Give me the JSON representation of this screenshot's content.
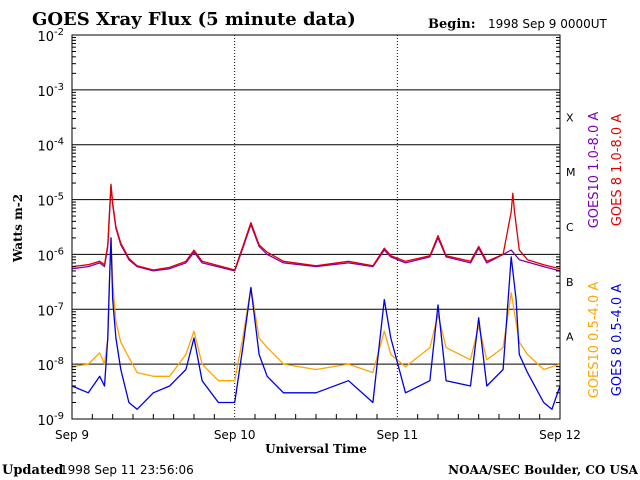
{
  "title": "GOES Xray Flux (5 minute data)",
  "begin_label": "Begin:",
  "begin_value": "1998 Sep 9 0000UT",
  "updated_label": "Updated",
  "updated_value": "1998 Sep 11 23:56:06",
  "credit": "NOAA/SEC Boulder, CO USA",
  "ylabel": "Watts m-2",
  "xlabel": "Universal Time",
  "colors": {
    "goes10_long": "#7f00b2",
    "goes8_long": "#e00000",
    "goes10_short": "#ffa500",
    "goes8_short": "#0000e6"
  },
  "chart_data": {
    "type": "line",
    "y_scale": "log",
    "ylim": [
      1e-09,
      0.01
    ],
    "y_ticks": [
      {
        "value": 0.01,
        "base": "10",
        "exp": "-2"
      },
      {
        "value": 0.001,
        "base": "10",
        "exp": "-3"
      },
      {
        "value": 0.0001,
        "base": "10",
        "exp": "-4"
      },
      {
        "value": 1e-05,
        "base": "10",
        "exp": "-5"
      },
      {
        "value": 1e-06,
        "base": "10",
        "exp": "-6"
      },
      {
        "value": 1e-07,
        "base": "10",
        "exp": "-7"
      },
      {
        "value": 1e-08,
        "base": "10",
        "exp": "-8"
      },
      {
        "value": 1e-09,
        "base": "10",
        "exp": "-9"
      }
    ],
    "xlim_days": [
      0,
      3
    ],
    "x_ticks": [
      {
        "day": 0,
        "label": "Sep 9"
      },
      {
        "day": 1,
        "label": "Sep 10"
      },
      {
        "day": 2,
        "label": "Sep 11"
      },
      {
        "day": 3,
        "label": "Sep 12"
      }
    ],
    "flare_classes": [
      {
        "label": "X",
        "value": 0.0001
      },
      {
        "label": "M",
        "value": 1e-05
      },
      {
        "label": "C",
        "value": 1e-06
      },
      {
        "label": "B",
        "value": 1e-07
      },
      {
        "label": "A",
        "value": 1e-08
      }
    ],
    "grid": true,
    "legend_position": "right",
    "series": [
      {
        "name": "GOES10 1.0-8.0 A",
        "color": "#7f00b2",
        "points": [
          [
            0,
            5.5e-07
          ],
          [
            0.1,
            6e-07
          ],
          [
            0.17,
            7e-07
          ],
          [
            0.2,
            6e-07
          ],
          [
            0.22,
            1.4e-06
          ],
          [
            0.23,
            5e-06
          ],
          [
            0.24,
            1.8e-05
          ],
          [
            0.25,
            8e-06
          ],
          [
            0.27,
            3e-06
          ],
          [
            0.3,
            1.5e-06
          ],
          [
            0.35,
            8e-07
          ],
          [
            0.4,
            6e-07
          ],
          [
            0.5,
            5e-07
          ],
          [
            0.6,
            5.5e-07
          ],
          [
            0.7,
            7e-07
          ],
          [
            0.75,
            1.1e-06
          ],
          [
            0.8,
            7e-07
          ],
          [
            1.0,
            5e-07
          ],
          [
            1.05,
            1.3e-06
          ],
          [
            1.1,
            3.5e-06
          ],
          [
            1.15,
            1.4e-06
          ],
          [
            1.2,
            1e-06
          ],
          [
            1.3,
            7e-07
          ],
          [
            1.5,
            6e-07
          ],
          [
            1.7,
            7e-07
          ],
          [
            1.85,
            6e-07
          ],
          [
            1.92,
            1.2e-06
          ],
          [
            1.96,
            9e-07
          ],
          [
            2.05,
            7e-07
          ],
          [
            2.2,
            9e-07
          ],
          [
            2.25,
            2e-06
          ],
          [
            2.3,
            9e-07
          ],
          [
            2.45,
            7e-07
          ],
          [
            2.5,
            1.3e-06
          ],
          [
            2.55,
            7e-07
          ],
          [
            2.65,
            1e-06
          ],
          [
            2.7,
            1.2e-06
          ],
          [
            2.75,
            8e-07
          ],
          [
            2.9,
            6e-07
          ],
          [
            3.0,
            5e-07
          ]
        ]
      },
      {
        "name": "GOES 8 1.0-8.0 A",
        "color": "#e00000",
        "points": [
          [
            0,
            6e-07
          ],
          [
            0.1,
            6.5e-07
          ],
          [
            0.17,
            7.5e-07
          ],
          [
            0.2,
            6.5e-07
          ],
          [
            0.22,
            1.5e-06
          ],
          [
            0.23,
            5.5e-06
          ],
          [
            0.24,
            1.9e-05
          ],
          [
            0.25,
            8.5e-06
          ],
          [
            0.27,
            3.2e-06
          ],
          [
            0.3,
            1.6e-06
          ],
          [
            0.35,
            8.5e-07
          ],
          [
            0.4,
            6.2e-07
          ],
          [
            0.5,
            5.2e-07
          ],
          [
            0.6,
            5.8e-07
          ],
          [
            0.7,
            7.5e-07
          ],
          [
            0.75,
            1.2e-06
          ],
          [
            0.8,
            7.5e-07
          ],
          [
            1.0,
            5.2e-07
          ],
          [
            1.05,
            1.4e-06
          ],
          [
            1.1,
            3.8e-06
          ],
          [
            1.15,
            1.5e-06
          ],
          [
            1.2,
            1.1e-06
          ],
          [
            1.3,
            7.5e-07
          ],
          [
            1.5,
            6.2e-07
          ],
          [
            1.7,
            7.5e-07
          ],
          [
            1.85,
            6.2e-07
          ],
          [
            1.92,
            1.3e-06
          ],
          [
            1.96,
            9.5e-07
          ],
          [
            2.05,
            7.5e-07
          ],
          [
            2.2,
            9.5e-07
          ],
          [
            2.25,
            2.2e-06
          ],
          [
            2.3,
            9.5e-07
          ],
          [
            2.45,
            7.5e-07
          ],
          [
            2.5,
            1.4e-06
          ],
          [
            2.55,
            7.5e-07
          ],
          [
            2.65,
            1e-06
          ],
          [
            2.7,
            6e-06
          ],
          [
            2.71,
            1.3e-05
          ],
          [
            2.72,
            6e-06
          ],
          [
            2.75,
            1.2e-06
          ],
          [
            2.8,
            8e-07
          ],
          [
            2.9,
            6.5e-07
          ],
          [
            3.0,
            5.5e-07
          ]
        ]
      },
      {
        "name": "GOES10 0.5-4.0 A",
        "color": "#ffa500",
        "points": [
          [
            0,
            9e-09
          ],
          [
            0.1,
            1e-08
          ],
          [
            0.17,
            1.6e-08
          ],
          [
            0.2,
            1e-08
          ],
          [
            0.22,
            3e-08
          ],
          [
            0.23,
            3e-07
          ],
          [
            0.24,
            2e-06
          ],
          [
            0.25,
            3e-07
          ],
          [
            0.27,
            6e-08
          ],
          [
            0.3,
            2.5e-08
          ],
          [
            0.4,
            7e-09
          ],
          [
            0.5,
            6e-09
          ],
          [
            0.6,
            6e-09
          ],
          [
            0.7,
            1.5e-08
          ],
          [
            0.75,
            4e-08
          ],
          [
            0.8,
            1e-08
          ],
          [
            0.9,
            5e-09
          ],
          [
            1.0,
            5e-09
          ],
          [
            1.05,
            3e-08
          ],
          [
            1.1,
            2.5e-07
          ],
          [
            1.15,
            3e-08
          ],
          [
            1.2,
            2e-08
          ],
          [
            1.3,
            1e-08
          ],
          [
            1.5,
            8e-09
          ],
          [
            1.7,
            1e-08
          ],
          [
            1.85,
            7e-09
          ],
          [
            1.92,
            4e-08
          ],
          [
            1.96,
            1.5e-08
          ],
          [
            2.05,
            9e-09
          ],
          [
            2.2,
            2e-08
          ],
          [
            2.25,
            8e-08
          ],
          [
            2.3,
            2e-08
          ],
          [
            2.45,
            1.2e-08
          ],
          [
            2.5,
            5e-08
          ],
          [
            2.55,
            1.2e-08
          ],
          [
            2.65,
            2e-08
          ],
          [
            2.7,
            2e-07
          ],
          [
            2.75,
            2.5e-08
          ],
          [
            2.8,
            1.5e-08
          ],
          [
            2.9,
            8e-09
          ],
          [
            3.0,
            1e-08
          ]
        ]
      },
      {
        "name": "GOES 8 0.5-4.0 A",
        "color": "#0000e6",
        "points": [
          [
            0,
            4e-09
          ],
          [
            0.1,
            3e-09
          ],
          [
            0.17,
            6e-09
          ],
          [
            0.2,
            4e-09
          ],
          [
            0.22,
            3e-08
          ],
          [
            0.23,
            3e-07
          ],
          [
            0.24,
            2e-06
          ],
          [
            0.25,
            1.5e-07
          ],
          [
            0.27,
            3e-08
          ],
          [
            0.3,
            8e-09
          ],
          [
            0.35,
            2e-09
          ],
          [
            0.4,
            1.5e-09
          ],
          [
            0.5,
            3e-09
          ],
          [
            0.6,
            4e-09
          ],
          [
            0.7,
            8e-09
          ],
          [
            0.75,
            3e-08
          ],
          [
            0.8,
            5e-09
          ],
          [
            0.9,
            2e-09
          ],
          [
            1.0,
            2e-09
          ],
          [
            1.05,
            2e-08
          ],
          [
            1.1,
            2.5e-07
          ],
          [
            1.15,
            1.5e-08
          ],
          [
            1.2,
            6e-09
          ],
          [
            1.3,
            3e-09
          ],
          [
            1.5,
            3e-09
          ],
          [
            1.7,
            5e-09
          ],
          [
            1.85,
            2e-09
          ],
          [
            1.92,
            1.5e-07
          ],
          [
            1.96,
            3e-08
          ],
          [
            2.05,
            3e-09
          ],
          [
            2.2,
            5e-09
          ],
          [
            2.25,
            1.2e-07
          ],
          [
            2.3,
            5e-09
          ],
          [
            2.45,
            4e-09
          ],
          [
            2.5,
            7e-08
          ],
          [
            2.55,
            4e-09
          ],
          [
            2.65,
            8e-09
          ],
          [
            2.7,
            9e-07
          ],
          [
            2.73,
            1.5e-07
          ],
          [
            2.75,
            1.5e-08
          ],
          [
            2.8,
            7e-09
          ],
          [
            2.9,
            2e-09
          ],
          [
            2.95,
            1.5e-09
          ],
          [
            3.0,
            4e-09
          ]
        ]
      }
    ]
  }
}
